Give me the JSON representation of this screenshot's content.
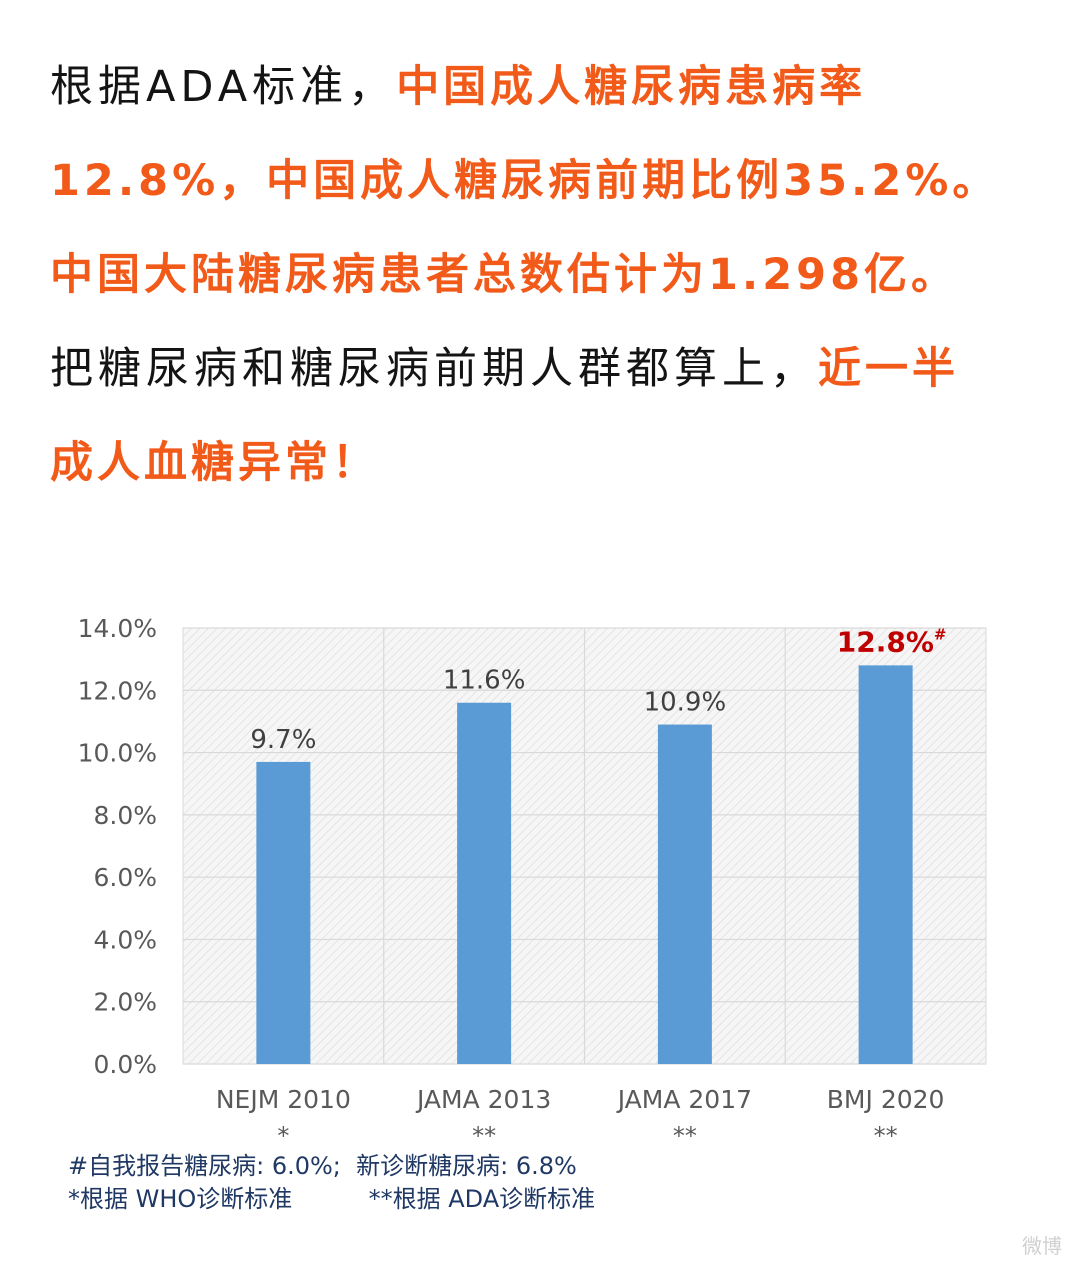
{
  "intro": {
    "line1_a": "根据ADA标准，",
    "line1_b": "中国成人糖尿病患病率",
    "line2": "12.8%，中国成人糖尿病前期比例35.2%。",
    "line3": "中国大陆糖尿病患者总数估计为1.298亿。",
    "line4_a": "把糖尿病和糖尿病前期人群都算上，",
    "line4_b": "近一半",
    "line5": "成人血糖异常！"
  },
  "chart_data": {
    "type": "bar",
    "categories": [
      "NEJM 2010",
      "JAMA 2013",
      "JAMA 2017",
      "BMJ 2020"
    ],
    "category_markers": [
      "*",
      "**",
      "**",
      "**"
    ],
    "values": [
      9.7,
      11.6,
      10.9,
      12.8
    ],
    "data_labels": [
      "9.7%",
      "11.6%",
      "10.9%",
      "12.8%"
    ],
    "highlight_label_suffix": "#",
    "highlight_index": 3,
    "ylim": [
      0,
      14
    ],
    "yticks": [
      "0.0%",
      "2.0%",
      "4.0%",
      "6.0%",
      "8.0%",
      "10.0%",
      "12.0%",
      "14.0%"
    ],
    "grid": true,
    "bar_color": "#5b9bd5",
    "highlight_label_color": "#c00000",
    "label_color": "#404040"
  },
  "notes": {
    "line1": "#自我报告糖尿病: 6.0%;  新诊断糖尿病: 6.8%",
    "line2": "*根据 WHO诊断标准          **根据 ADA诊断标准"
  },
  "watermark": "微博"
}
